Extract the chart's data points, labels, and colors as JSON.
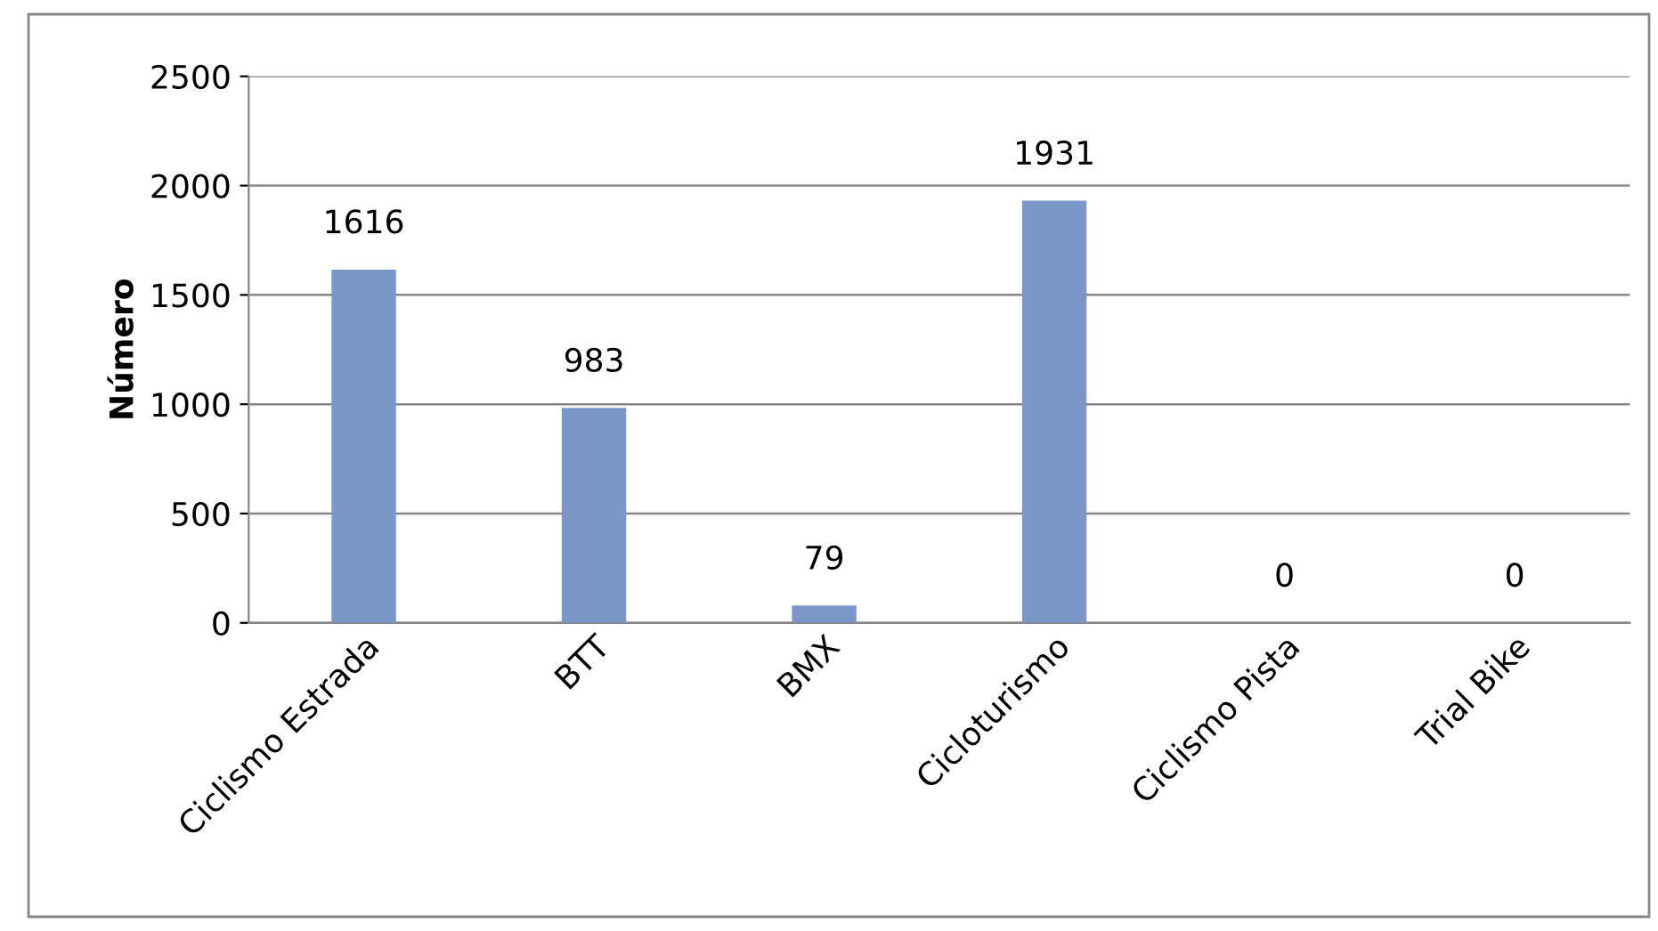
{
  "chart_data": {
    "type": "bar",
    "ylabel": "Número",
    "categories": [
      "Ciclismo Estrada",
      "BTT",
      "BMX",
      "Cicloturismo",
      "Ciclismo Pista",
      "Trial Bike"
    ],
    "values": [
      1616,
      983,
      79,
      1931,
      0,
      0
    ],
    "color": "#7b97c9",
    "ylim": [
      0,
      2500
    ],
    "yticks": [
      0,
      500,
      1000,
      1500,
      2000,
      2500
    ],
    "grid": "y",
    "data_labels": true
  }
}
